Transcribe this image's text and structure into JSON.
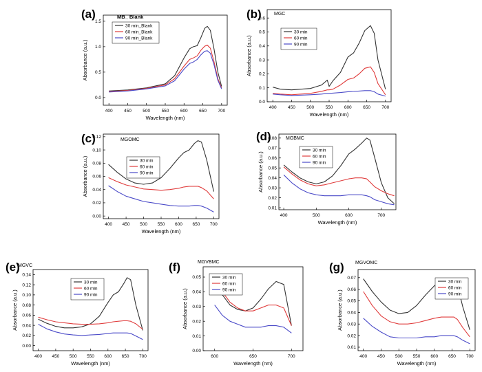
{
  "figure": {
    "colors": {
      "30 min": "#333333",
      "60 min": "#e03c3c",
      "90 min": "#4a4ac8",
      "axis": "#000000"
    }
  },
  "chart_data": [
    {
      "panel": "(a)",
      "title": "MB_ Blank",
      "type": "line",
      "xlabel": "Wavelength (nm)",
      "ylabel": "Absorbance (a.u.)",
      "xlim": [
        385,
        715
      ],
      "ylim": [
        -0.15,
        1.62
      ],
      "xticks": [
        400,
        450,
        500,
        550,
        600,
        650,
        700
      ],
      "yticks": [
        0.0,
        0.5,
        1.0,
        1.5
      ],
      "yticklabels": [
        "0.0",
        "0.5",
        "1.0",
        "1.5"
      ],
      "legend_position": "top-left",
      "x": [
        400,
        450,
        500,
        550,
        575,
        600,
        615,
        625,
        635,
        645,
        655,
        662,
        670,
        680,
        690,
        700
      ],
      "series": [
        {
          "name": "30 min_Blank",
          "values": [
            0.13,
            0.15,
            0.19,
            0.27,
            0.43,
            0.78,
            0.96,
            1.0,
            1.02,
            1.18,
            1.36,
            1.4,
            1.32,
            0.95,
            0.5,
            0.22
          ]
        },
        {
          "name": "60 min_Blank",
          "values": [
            0.12,
            0.14,
            0.18,
            0.25,
            0.37,
            0.62,
            0.75,
            0.78,
            0.82,
            0.93,
            1.01,
            1.03,
            0.97,
            0.7,
            0.37,
            0.19
          ]
        },
        {
          "name": "90 min_Blank",
          "values": [
            0.11,
            0.13,
            0.17,
            0.23,
            0.33,
            0.56,
            0.67,
            0.7,
            0.75,
            0.84,
            0.91,
            0.92,
            0.87,
            0.64,
            0.34,
            0.17
          ]
        }
      ]
    },
    {
      "panel": "(b)",
      "title": "MGC",
      "type": "line",
      "xlabel": "Wavelength (nm)",
      "ylabel": "Absorbance (a.u.)",
      "xlim": [
        385,
        715
      ],
      "ylim": [
        0.0,
        0.66
      ],
      "xticks": [
        400,
        450,
        500,
        550,
        600,
        650,
        700
      ],
      "yticks": [
        0.0,
        0.1,
        0.2,
        0.3,
        0.4,
        0.5,
        0.6
      ],
      "yticklabels": [
        "0.0",
        "0.1",
        "0.2",
        "0.3",
        "0.4",
        "0.5",
        "0.6"
      ],
      "legend_position": "top-left",
      "x": [
        400,
        420,
        450,
        500,
        530,
        545,
        550,
        560,
        580,
        600,
        615,
        630,
        645,
        660,
        670,
        680,
        700
      ],
      "series": [
        {
          "name": "30 min",
          "values": [
            0.105,
            0.09,
            0.085,
            0.095,
            0.12,
            0.155,
            0.11,
            0.15,
            0.21,
            0.32,
            0.35,
            0.42,
            0.51,
            0.545,
            0.49,
            0.3,
            0.09
          ]
        },
        {
          "name": "60 min",
          "values": [
            0.06,
            0.055,
            0.05,
            0.06,
            0.075,
            0.085,
            0.085,
            0.09,
            0.12,
            0.16,
            0.17,
            0.2,
            0.24,
            0.25,
            0.21,
            0.13,
            0.05
          ]
        },
        {
          "name": "90 min",
          "values": [
            0.055,
            0.05,
            0.045,
            0.05,
            0.055,
            0.06,
            0.06,
            0.062,
            0.066,
            0.072,
            0.074,
            0.077,
            0.08,
            0.08,
            0.072,
            0.055,
            0.04
          ]
        }
      ]
    },
    {
      "panel": "(c)",
      "title": "MGOMC",
      "type": "line",
      "xlabel": "Wavelength (nm)",
      "ylabel": "Absorbance (a.u.)",
      "xlim": [
        385,
        715
      ],
      "ylim": [
        -0.004,
        0.124
      ],
      "xticks": [
        400,
        450,
        500,
        550,
        600,
        650,
        700
      ],
      "yticks": [
        0.0,
        0.02,
        0.04,
        0.06,
        0.08,
        0.1,
        0.12
      ],
      "yticklabels": [
        "0.00",
        "0.02",
        "0.04",
        "0.06",
        "0.08",
        "0.10",
        "0.12"
      ],
      "legend_position": "center-left",
      "x": [
        400,
        425,
        450,
        475,
        500,
        525,
        550,
        575,
        600,
        615,
        630,
        645,
        655,
        665,
        680,
        700
      ],
      "series": [
        {
          "name": "30 min",
          "values": [
            0.078,
            0.066,
            0.056,
            0.05,
            0.048,
            0.05,
            0.058,
            0.072,
            0.088,
            0.096,
            0.1,
            0.11,
            0.114,
            0.112,
            0.085,
            0.037
          ]
        },
        {
          "name": "60 min",
          "values": [
            0.058,
            0.052,
            0.047,
            0.044,
            0.041,
            0.04,
            0.039,
            0.04,
            0.042,
            0.044,
            0.045,
            0.045,
            0.045,
            0.043,
            0.038,
            0.026
          ]
        },
        {
          "name": "90 min",
          "values": [
            0.046,
            0.037,
            0.03,
            0.026,
            0.022,
            0.02,
            0.018,
            0.016,
            0.015,
            0.015,
            0.015,
            0.016,
            0.016,
            0.015,
            0.012,
            0.006
          ]
        }
      ]
    },
    {
      "panel": "(d)",
      "title": "MGBMC",
      "type": "line",
      "xlabel": "Wavelength (nm)",
      "ylabel": "Absorbance (a.u.)",
      "xlim": [
        385,
        745
      ],
      "ylim": [
        0.008,
        0.084
      ],
      "xticks": [
        400,
        500,
        600,
        700
      ],
      "yticks": [
        0.01,
        0.02,
        0.03,
        0.04,
        0.05,
        0.06,
        0.07,
        0.08
      ],
      "yticklabels": [
        "0.01",
        "0.02",
        "0.03",
        "0.04",
        "0.05",
        "0.06",
        "0.07",
        "0.08"
      ],
      "legend_position": "top-left",
      "x": [
        400,
        425,
        450,
        475,
        500,
        525,
        550,
        575,
        600,
        620,
        640,
        655,
        665,
        680,
        700,
        720,
        740
      ],
      "series": [
        {
          "name": "30 min",
          "values": [
            0.053,
            0.046,
            0.04,
            0.036,
            0.034,
            0.036,
            0.042,
            0.052,
            0.064,
            0.069,
            0.075,
            0.08,
            0.078,
            0.06,
            0.035,
            0.02,
            0.014
          ]
        },
        {
          "name": "60 min",
          "values": [
            0.051,
            0.044,
            0.038,
            0.034,
            0.032,
            0.033,
            0.035,
            0.037,
            0.039,
            0.04,
            0.04,
            0.039,
            0.036,
            0.031,
            0.027,
            0.024,
            0.022
          ]
        },
        {
          "name": "90 min",
          "values": [
            0.043,
            0.035,
            0.029,
            0.025,
            0.023,
            0.022,
            0.022,
            0.022,
            0.023,
            0.023,
            0.023,
            0.022,
            0.021,
            0.018,
            0.016,
            0.014,
            0.013
          ]
        }
      ]
    },
    {
      "panel": "(e)",
      "title": "MGVC",
      "type": "line",
      "xlabel": "Wavelength (nm)",
      "ylabel": "Absorbance (a.u.)",
      "xlim": [
        385,
        715
      ],
      "ylim": [
        -0.01,
        0.15
      ],
      "xticks": [
        400,
        450,
        500,
        550,
        600,
        650,
        700
      ],
      "yticks": [
        0.0,
        0.02,
        0.04,
        0.06,
        0.08,
        0.1,
        0.12,
        0.14
      ],
      "yticklabels": [
        "0.00",
        "0.02",
        "0.04",
        "0.06",
        "0.08",
        "0.10",
        "0.12",
        "0.14"
      ],
      "legend_position": "top-left",
      "x": [
        400,
        425,
        450,
        475,
        500,
        525,
        550,
        575,
        600,
        615,
        630,
        645,
        655,
        665,
        680,
        700
      ],
      "series": [
        {
          "name": "30 min",
          "values": [
            0.052,
            0.044,
            0.038,
            0.035,
            0.035,
            0.037,
            0.043,
            0.058,
            0.085,
            0.1,
            0.106,
            0.122,
            0.134,
            0.13,
            0.08,
            0.03
          ]
        },
        {
          "name": "60 min",
          "values": [
            0.056,
            0.051,
            0.047,
            0.045,
            0.043,
            0.042,
            0.042,
            0.043,
            0.045,
            0.047,
            0.048,
            0.049,
            0.049,
            0.048,
            0.043,
            0.032
          ]
        },
        {
          "name": "90 min",
          "values": [
            0.042,
            0.033,
            0.027,
            0.023,
            0.021,
            0.02,
            0.021,
            0.022,
            0.024,
            0.025,
            0.025,
            0.025,
            0.025,
            0.024,
            0.019,
            0.012
          ]
        }
      ]
    },
    {
      "panel": "(f)",
      "title": "MGVBMC",
      "type": "line",
      "xlabel": "Wavelength (nm)",
      "ylabel": "Absorbance (a.u.)",
      "xlim": [
        585,
        715
      ],
      "ylim": [
        0.0,
        0.057
      ],
      "xticks": [
        600,
        650,
        700
      ],
      "yticks": [
        0.0,
        0.01,
        0.02,
        0.03,
        0.04,
        0.05
      ],
      "yticklabels": [
        "0.00",
        "0.01",
        "0.02",
        "0.03",
        "0.04",
        "0.05"
      ],
      "legend_position": "top-left",
      "x": [
        600,
        610,
        620,
        630,
        640,
        650,
        660,
        670,
        680,
        690,
        700
      ],
      "series": [
        {
          "name": "30 min",
          "values": [
            0.047,
            0.038,
            0.031,
            0.028,
            0.027,
            0.029,
            0.035,
            0.042,
            0.047,
            0.045,
            0.017
          ]
        },
        {
          "name": "60 min",
          "values": [
            0.051,
            0.04,
            0.033,
            0.029,
            0.027,
            0.027,
            0.029,
            0.031,
            0.031,
            0.029,
            0.017
          ]
        },
        {
          "name": "90 min",
          "values": [
            0.031,
            0.024,
            0.02,
            0.018,
            0.016,
            0.016,
            0.016,
            0.017,
            0.017,
            0.016,
            0.012
          ]
        }
      ]
    },
    {
      "panel": "(g)",
      "title": "MGVOMC",
      "type": "line",
      "xlabel": "Wavelength (nm)",
      "ylabel": "Absorbance (a.u.)",
      "xlim": [
        385,
        715
      ],
      "ylim": [
        0.007,
        0.077
      ],
      "xticks": [
        400,
        450,
        500,
        550,
        600,
        650,
        700
      ],
      "yticks": [
        0.01,
        0.02,
        0.03,
        0.04,
        0.05,
        0.06,
        0.07
      ],
      "yticklabels": [
        "0.01",
        "0.02",
        "0.03",
        "0.04",
        "0.05",
        "0.06",
        "0.07"
      ],
      "legend_position": "top-right",
      "x": [
        400,
        425,
        450,
        475,
        500,
        525,
        550,
        575,
        600,
        620,
        640,
        655,
        665,
        680,
        700
      ],
      "series": [
        {
          "name": "30 min",
          "values": [
            0.069,
            0.058,
            0.049,
            0.042,
            0.039,
            0.04,
            0.046,
            0.055,
            0.063,
            0.067,
            0.069,
            0.069,
            0.064,
            0.045,
            0.025
          ]
        },
        {
          "name": "60 min",
          "values": [
            0.058,
            0.046,
            0.037,
            0.032,
            0.03,
            0.03,
            0.031,
            0.033,
            0.035,
            0.036,
            0.036,
            0.036,
            0.034,
            0.027,
            0.019
          ]
        },
        {
          "name": "90 min",
          "values": [
            0.035,
            0.028,
            0.023,
            0.019,
            0.018,
            0.018,
            0.018,
            0.019,
            0.019,
            0.02,
            0.02,
            0.02,
            0.019,
            0.016,
            0.013
          ]
        }
      ]
    }
  ]
}
